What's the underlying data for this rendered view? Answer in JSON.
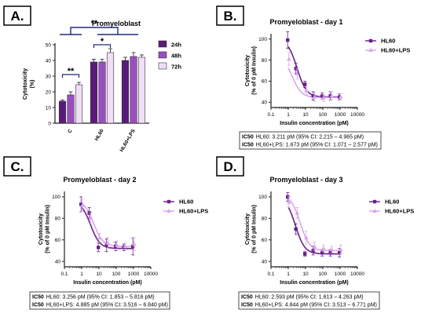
{
  "colors": {
    "dark": "#5a1a7a",
    "mid": "#9a4fc0",
    "light": "#f2def8",
    "hl60": "#6a1f8a",
    "lps": "#d9a6ec",
    "axis": "#222222",
    "bracket": "#1f2a7a"
  },
  "chart_data": [
    {
      "id": "A",
      "type": "bar",
      "panel_label": "A.",
      "title": "Promyeloblast",
      "ylabel": "Cytotoxicity (%)",
      "ylabel_lines": [
        "Cytotoxicity",
        "(%)"
      ],
      "xlabel": "",
      "ylim": [
        0,
        50
      ],
      "yticks": [
        0,
        10,
        20,
        30,
        40,
        50
      ],
      "categories": [
        "C",
        "HL60",
        "HL60+LPS"
      ],
      "legend": "right",
      "series": [
        {
          "name": "24h",
          "values": [
            14,
            39,
            40
          ],
          "errors": [
            0.8,
            1.8,
            2.0
          ],
          "color": "#5a1a7a"
        },
        {
          "name": "48h",
          "values": [
            18,
            39,
            42.5
          ],
          "errors": [
            2.0,
            1.8,
            2.5
          ],
          "color": "#9a4fc0"
        },
        {
          "name": "72h",
          "values": [
            24.5,
            45,
            42
          ],
          "errors": [
            1.5,
            2.5,
            1.5
          ],
          "color": "#f2def8"
        }
      ],
      "annotations": [
        {
          "text": "**",
          "between": "C 24h vs C 72h"
        },
        {
          "text": "**",
          "between": "C vs HL60 / HL60+LPS"
        },
        {
          "text": "*",
          "between": "HL60 24h vs HL60 72h"
        }
      ]
    },
    {
      "id": "B",
      "type": "scatter",
      "panel_label": "B.",
      "title": "Promyeloblast - day 1",
      "ylabel": "Cytotoxicity (% of 0 pM Insulin)",
      "ylabel_lines": [
        "Cytotoxicity",
        "(% of 0 pM Insulin)"
      ],
      "xlabel": "Insulin concentration (pM)",
      "xscale": "log",
      "xlim": [
        0.1,
        10000
      ],
      "xticks": [
        0.1,
        1,
        10,
        100,
        1000,
        10000
      ],
      "xticklabels": [
        "0.1",
        "1",
        "10",
        "100",
        "1000",
        "10000"
      ],
      "ylim": [
        35,
        105
      ],
      "yticks": [
        40,
        60,
        80,
        100
      ],
      "legend": "top-right",
      "series": [
        {
          "name": "HL60",
          "x": [
            1,
            3,
            10,
            30,
            100,
            300,
            1000
          ],
          "y": [
            99,
            72,
            57,
            46,
            46,
            46,
            45
          ],
          "err": [
            8,
            5,
            3,
            4,
            3,
            4,
            3
          ],
          "color": "#6a1f8a"
        },
        {
          "name": "HL60+LPS",
          "x": [
            1,
            3,
            10,
            30,
            100,
            300,
            1000
          ],
          "y": [
            81,
            67,
            51,
            45,
            44,
            46,
            45
          ],
          "err": [
            6,
            5,
            4,
            4,
            3,
            4,
            3
          ],
          "color": "#d9a6ec"
        }
      ],
      "fits": [
        {
          "name": "HL60",
          "top": 100,
          "bottom": 45,
          "ic50": 3.211,
          "x0": 1,
          "x1": 1000
        },
        {
          "name": "HL60+LPS",
          "top": 85,
          "bottom": 44.5,
          "ic50": 1.673,
          "x0": 1,
          "x1": 1000
        }
      ],
      "ic50": {
        "label": "IC50",
        "line1": "HL60: 3.211 pM (95% CI: 2.215 – 4.965 pM)",
        "line2": "HL60+LPS: 1.673 pM (95% CI: 1.071 – 2.577 pM)"
      }
    },
    {
      "id": "C",
      "type": "scatter",
      "panel_label": "C.",
      "title": "Promyeloblast - day 2",
      "ylabel": "Cytotoxicity (% of 0 pM Insulin)",
      "ylabel_lines": [
        "Cytotoxicity",
        "(% of 0 pM Insulin)"
      ],
      "xlabel": "Insulin concentration (pM)",
      "xscale": "log",
      "xlim": [
        0.1,
        10000
      ],
      "xticks": [
        0.1,
        1,
        10,
        100,
        1000,
        10000
      ],
      "xticklabels": [
        "0.1",
        "1",
        "10",
        "100",
        "1000",
        "10000"
      ],
      "ylim": [
        35,
        105
      ],
      "yticks": [
        40,
        60,
        80,
        100
      ],
      "legend": "top-right",
      "series": [
        {
          "name": "HL60",
          "x": [
            1,
            3,
            10,
            30,
            100,
            300,
            1000
          ],
          "y": [
            93,
            85,
            53,
            55,
            54,
            53,
            54
          ],
          "err": [
            7,
            5,
            4,
            6,
            4,
            3,
            8
          ],
          "color": "#6a1f8a"
        },
        {
          "name": "HL60+LPS",
          "x": [
            1,
            3,
            10,
            30,
            100,
            300,
            1000
          ],
          "y": [
            92,
            80,
            62,
            57,
            55,
            54,
            56
          ],
          "err": [
            6,
            5,
            4,
            5,
            4,
            3,
            6
          ],
          "color": "#d9a6ec"
        }
      ],
      "fits": [
        {
          "name": "HL60",
          "top": 96,
          "bottom": 52,
          "ic50": 3.256,
          "x0": 1,
          "x1": 1000
        },
        {
          "name": "HL60+LPS",
          "top": 97,
          "bottom": 54,
          "ic50": 4.885,
          "x0": 1,
          "x1": 1000
        }
      ],
      "ic50": {
        "label": "IC50",
        "line1": "HL60: 3.256 pM (95% CI: 1.853 – 5.816 pM)",
        "line2": "HL60+LPS: 4.885 pM (95% CI: 3.516 – 6.840 pM)"
      }
    },
    {
      "id": "D",
      "type": "scatter",
      "panel_label": "D.",
      "title": "Promyeloblast - day 3",
      "ylabel": "Cytotoxicity (% of 0 pM Insulin)",
      "ylabel_lines": [
        "Cytotoxicity",
        "(% of 0 pM Insulin)"
      ],
      "xlabel": "Insulin concentration (pM)",
      "xscale": "log",
      "xlim": [
        0.1,
        10000
      ],
      "xticks": [
        0.1,
        1,
        10,
        100,
        1000,
        10000
      ],
      "xticklabels": [
        "0.1",
        "1",
        "10",
        "100",
        "1000",
        "10000"
      ],
      "ylim": [
        35,
        105
      ],
      "yticks": [
        40,
        60,
        80,
        100
      ],
      "legend": "top-right",
      "series": [
        {
          "name": "HL60",
          "x": [
            1,
            3,
            10,
            30,
            100,
            300,
            1000
          ],
          "y": [
            100,
            70,
            47,
            50,
            48,
            48,
            48
          ],
          "err": [
            4,
            5,
            2,
            4,
            3,
            3,
            4
          ],
          "color": "#6a1f8a"
        },
        {
          "name": "HL60+LPS",
          "x": [
            1,
            3,
            10,
            30,
            100,
            300,
            1000
          ],
          "y": [
            95,
            85,
            62,
            54,
            52,
            51,
            51
          ],
          "err": [
            5,
            5,
            6,
            4,
            3,
            3,
            4
          ],
          "color": "#d9a6ec"
        }
      ],
      "fits": [
        {
          "name": "HL60",
          "top": 100,
          "bottom": 47,
          "ic50": 2.593,
          "x0": 1,
          "x1": 1000
        },
        {
          "name": "HL60+LPS",
          "top": 102,
          "bottom": 50,
          "ic50": 4.844,
          "x0": 1,
          "x1": 1000
        }
      ],
      "ic50": {
        "label": "IC50",
        "line1": "HL60: 2.593 pM (95% CI: 1.613 – 4.263 pM)",
        "line2": "HL60+LPS: 4.844 pM (95% CI: 3.513 – 6.771 pM)"
      }
    }
  ]
}
